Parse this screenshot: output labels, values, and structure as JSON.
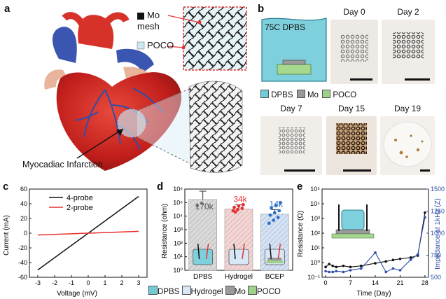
{
  "panels": {
    "a": "a",
    "b": "b",
    "c": "c",
    "d": "d",
    "e": "e"
  },
  "panel_a": {
    "mo_label_line1": "Mo",
    "mo_label_line2": "mesh",
    "poco_label": "POCO",
    "infarction_label": "Myocadiac Infarction",
    "colors": {
      "mo": "#111111",
      "poco": "#cfe8f0",
      "heart": "#c8221f",
      "vessel": "#2f4ea8"
    }
  },
  "panel_b": {
    "vessel_label": "75C DPBS",
    "days": [
      "Day 0",
      "Day 2",
      "Day 7",
      "Day 15",
      "Day 19"
    ],
    "legend": [
      {
        "label": "DPBS",
        "color": "#6fcbd8"
      },
      {
        "label": "Mo",
        "color": "#9a9a9a"
      },
      {
        "label": "POCO",
        "color": "#9fd18b"
      }
    ]
  },
  "panel_d_legend": [
    {
      "label": "DPBS",
      "color": "#6fcbd8"
    },
    {
      "label": "Hydrogel",
      "color": "#d7e7f5"
    },
    {
      "label": "Mo",
      "color": "#9a9a9a"
    },
    {
      "label": "POCO",
      "color": "#9fd18b"
    }
  ],
  "chart_data": [
    {
      "id": "c",
      "type": "line",
      "xlabel": "Voltage (mV)",
      "ylabel": "Current (mA)",
      "xlim": [
        -3.5,
        3.5
      ],
      "ylim": [
        -60,
        60
      ],
      "xticks": [
        -3,
        -2,
        -1,
        0,
        1,
        2,
        3
      ],
      "yticks": [
        -60,
        -40,
        -20,
        0,
        20,
        40,
        60
      ],
      "legend_position": "top-left",
      "series": [
        {
          "name": "4-probe",
          "color": "#111111",
          "x": [
            -3,
            3
          ],
          "y": [
            -50,
            50
          ]
        },
        {
          "name": "2-probe",
          "color": "#e8312f",
          "x": [
            -3,
            3
          ],
          "y": [
            -2.5,
            2.5
          ]
        }
      ]
    },
    {
      "id": "d",
      "type": "bar",
      "ylabel": "Resistance (ohm)",
      "yscale": "log",
      "ylim": [
        1,
        1000000
      ],
      "yticks": [
        1,
        10,
        100,
        1000,
        10000,
        100000,
        1000000
      ],
      "ytick_labels": [
        "10⁰",
        "10¹",
        "10²",
        "10³",
        "10⁴",
        "10⁵",
        "10⁶"
      ],
      "categories": [
        "DPBS",
        "Hydrogel",
        "BCEP"
      ],
      "values": [
        170000,
        34000,
        14000
      ],
      "value_labels": [
        "170k",
        "34k",
        "14k"
      ],
      "label_colors": [
        "#555555",
        "#e8312f",
        "#2f6fc8"
      ],
      "bar_colors": [
        "#d9d9d9",
        "#f6d4d4",
        "#d3e2f6"
      ],
      "errors_upper": [
        700000,
        70000,
        30000
      ],
      "points": [
        [
          60000,
          90000
        ],
        [
          25000,
          30000,
          38000,
          45000,
          55000,
          70000,
          20000
        ],
        [
          3000,
          5000,
          8000,
          12000,
          18000,
          25000,
          40000,
          60000,
          100000
        ]
      ],
      "point_colors": [
        "#777777",
        "#e8312f",
        "#2f6fc8"
      ]
    },
    {
      "id": "e",
      "type": "line",
      "xlabel": "Time (Day)",
      "ylabel": "Resistance (Ω)",
      "y2label": "Impedance at 1kHz (Z)",
      "xlim": [
        -1,
        29
      ],
      "xticks": [
        0,
        7,
        14,
        21,
        28
      ],
      "yscale": "log",
      "ylim": [
        0.1,
        100000
      ],
      "yticks": [
        0.1,
        1,
        10,
        100,
        1000,
        10000,
        100000
      ],
      "ytick_labels": [
        "10⁻¹",
        "10⁰",
        "10¹",
        "10²",
        "10³",
        "10⁴",
        "10⁵"
      ],
      "y2lim": [
        500,
        1500
      ],
      "y2ticks": [
        500,
        750,
        1000,
        1250,
        1500
      ],
      "series": [
        {
          "name": "Resistance",
          "axis": "left",
          "color": "#111111",
          "x": [
            0,
            1,
            2,
            3,
            5,
            7,
            10,
            14,
            17,
            19,
            21,
            24,
            26,
            28
          ],
          "y": [
            0.5,
            0.8,
            0.6,
            0.5,
            0.6,
            0.5,
            0.6,
            0.9,
            1.2,
            1.5,
            1.8,
            2.2,
            3,
            2500
          ]
        },
        {
          "name": "Impedance",
          "axis": "right",
          "color": "#2f4ea8",
          "x": [
            0,
            1,
            2,
            3,
            5,
            7,
            10,
            14,
            17,
            19,
            21,
            24,
            26,
            28
          ],
          "y": [
            570,
            560,
            560,
            570,
            560,
            580,
            600,
            780,
            560,
            600,
            580,
            700,
            760,
            1180
          ]
        }
      ]
    }
  ]
}
